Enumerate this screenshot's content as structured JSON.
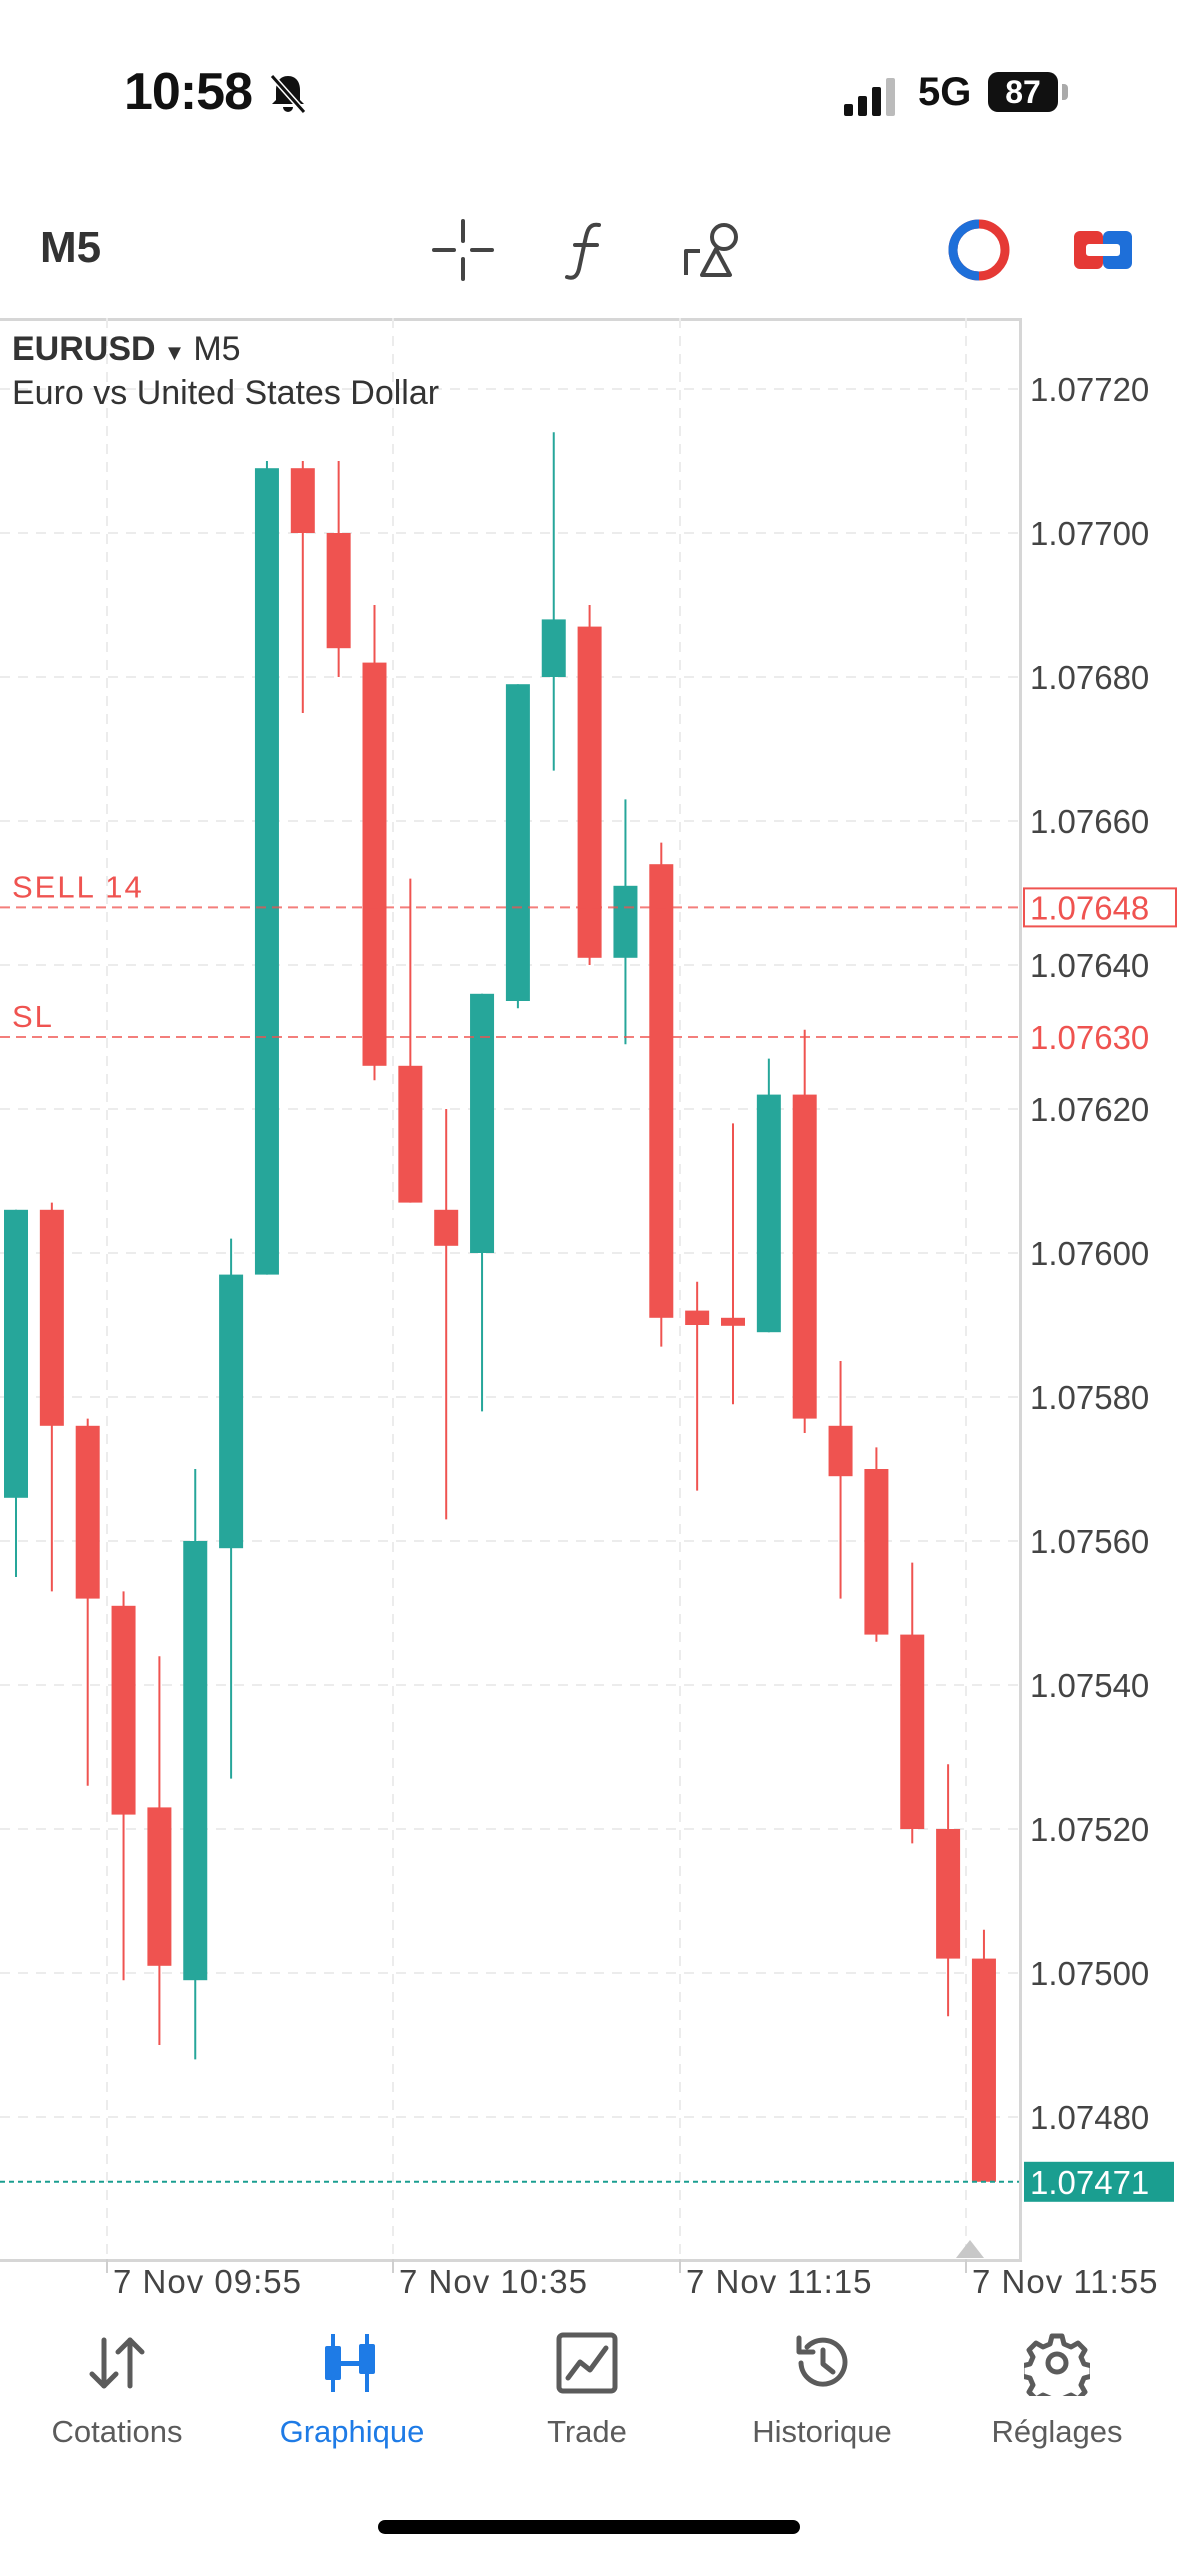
{
  "status_bar": {
    "time": "10:58",
    "network": "5G",
    "battery": "87"
  },
  "toolbar": {
    "timeframe": "M5"
  },
  "chart_header": {
    "symbol": "EURUSD",
    "timeframe": "M5",
    "description": "Euro vs United States Dollar"
  },
  "chart_data": {
    "type": "candlestick",
    "symbol": "EURUSD",
    "timeframe": "M5",
    "y_ticks": [
      1.0772,
      1.077,
      1.0768,
      1.0766,
      1.0764,
      1.0762,
      1.076,
      1.0758,
      1.0756,
      1.0754,
      1.0752,
      1.075,
      1.0748
    ],
    "y_tick_labels": [
      "1.07720",
      "1.07700",
      "1.07680",
      "1.07660",
      "1.07640",
      "1.07620",
      "1.07600",
      "1.07580",
      "1.07560",
      "1.07540",
      "1.07520",
      "1.07500",
      "1.07480"
    ],
    "ylim": [
      1.07454,
      1.07725
    ],
    "x_tick_labels": [
      "7 Nov 09:55",
      "7 Nov 10:35",
      "7 Nov 11:15",
      "7 Nov 11:55"
    ],
    "grid": true,
    "candles": [
      {
        "o": 1.07566,
        "h": 1.07606,
        "l": 1.07555,
        "c": 1.07606
      },
      {
        "o": 1.07606,
        "h": 1.07607,
        "l": 1.07553,
        "c": 1.07576
      },
      {
        "o": 1.07576,
        "h": 1.07577,
        "l": 1.07526,
        "c": 1.07552
      },
      {
        "o": 1.07551,
        "h": 1.07553,
        "l": 1.07499,
        "c": 1.07522
      },
      {
        "o": 1.07523,
        "h": 1.07544,
        "l": 1.0749,
        "c": 1.07501
      },
      {
        "o": 1.07499,
        "h": 1.0757,
        "l": 1.07488,
        "c": 1.0756
      },
      {
        "o": 1.07559,
        "h": 1.07602,
        "l": 1.07527,
        "c": 1.07597
      },
      {
        "o": 1.07597,
        "h": 1.0771,
        "l": 1.07597,
        "c": 1.07709
      },
      {
        "o": 1.07709,
        "h": 1.0771,
        "l": 1.07675,
        "c": 1.077
      },
      {
        "o": 1.077,
        "h": 1.0771,
        "l": 1.0768,
        "c": 1.07684
      },
      {
        "o": 1.07682,
        "h": 1.0769,
        "l": 1.07624,
        "c": 1.07626
      },
      {
        "o": 1.07626,
        "h": 1.07652,
        "l": 1.07607,
        "c": 1.07607
      },
      {
        "o": 1.07606,
        "h": 1.0762,
        "l": 1.07563,
        "c": 1.07601
      },
      {
        "o": 1.076,
        "h": 1.07636,
        "l": 1.07578,
        "c": 1.07636
      },
      {
        "o": 1.07635,
        "h": 1.07679,
        "l": 1.07634,
        "c": 1.07679
      },
      {
        "o": 1.0768,
        "h": 1.07714,
        "l": 1.07667,
        "c": 1.07688
      },
      {
        "o": 1.07687,
        "h": 1.0769,
        "l": 1.0764,
        "c": 1.07641
      },
      {
        "o": 1.07641,
        "h": 1.07663,
        "l": 1.07629,
        "c": 1.07651
      },
      {
        "o": 1.07654,
        "h": 1.07657,
        "l": 1.07587,
        "c": 1.07591
      },
      {
        "o": 1.07592,
        "h": 1.07596,
        "l": 1.07567,
        "c": 1.0759
      },
      {
        "o": 1.07591,
        "h": 1.07618,
        "l": 1.07579,
        "c": 1.0759
      },
      {
        "o": 1.07589,
        "h": 1.07627,
        "l": 1.07589,
        "c": 1.07622
      },
      {
        "o": 1.07622,
        "h": 1.07631,
        "l": 1.07575,
        "c": 1.07577
      },
      {
        "o": 1.07576,
        "h": 1.07585,
        "l": 1.07552,
        "c": 1.07569
      },
      {
        "o": 1.0757,
        "h": 1.07573,
        "l": 1.07546,
        "c": 1.07547
      },
      {
        "o": 1.07547,
        "h": 1.07557,
        "l": 1.07518,
        "c": 1.0752
      },
      {
        "o": 1.0752,
        "h": 1.07529,
        "l": 1.07494,
        "c": 1.07502
      },
      {
        "o": 1.07502,
        "h": 1.07506,
        "l": 1.07471,
        "c": 1.07471
      }
    ],
    "lines": [
      {
        "label": "SELL 14",
        "price": 1.07648,
        "price_label": "1.07648",
        "color": "#ef5350"
      },
      {
        "label": "SL",
        "price": 1.0763,
        "price_label": "1.07630",
        "color": "#ef5350"
      }
    ],
    "current_price": 1.07471,
    "current_price_label": "1.07471",
    "colors": {
      "up": "#26a69a",
      "down": "#ef5350",
      "current": "#1a9e90"
    }
  },
  "nav": {
    "items": [
      {
        "label": "Cotations",
        "icon": "arrows-updown-icon"
      },
      {
        "label": "Graphique",
        "icon": "candles-icon",
        "active": true
      },
      {
        "label": "Trade",
        "icon": "trade-chart-icon"
      },
      {
        "label": "Historique",
        "icon": "history-icon"
      },
      {
        "label": "Réglages",
        "icon": "gear-icon"
      }
    ]
  }
}
